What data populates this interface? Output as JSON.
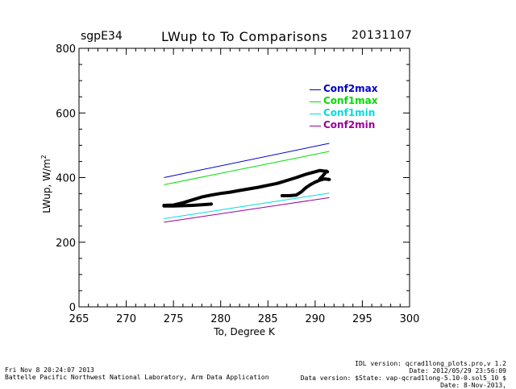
{
  "header": {
    "site": "sgpE34",
    "title": "LWup to To Comparisons",
    "date": "20131107"
  },
  "footer": {
    "left_line1": "Fri Nov  8 20:24:07 2013",
    "left_line2": "Battelle Pacific Northwest National Laboratory, Arm Data Application",
    "right_line1": "IDL version: qcrad1long_plots.pro,v 1.2",
    "right_line2": "Date: 2012/05/29 23:56:09",
    "right_line3": "Data version: $State: vap-qcrad1long-5.10-0.sol5_10 $",
    "right_line4": "Date: 8-Nov-2013,"
  },
  "chart_data": {
    "type": "scatter",
    "title": "LWup to To Comparisons",
    "xlabel": "To, Degree K",
    "ylabel": "LWup, W/m",
    "ylabel_superscript": "2",
    "xlim": [
      265,
      300
    ],
    "ylim": [
      0,
      800
    ],
    "xticks": [
      265,
      270,
      275,
      280,
      285,
      290,
      295,
      300
    ],
    "yticks": [
      0,
      200,
      400,
      600,
      800
    ],
    "grid": false,
    "legend_position": "top-right",
    "reference_lines": [
      {
        "name": "Conf2max",
        "color": "#0000cc",
        "x": [
          274,
          291.5
        ],
        "y": [
          400,
          506
        ]
      },
      {
        "name": "Conf1max",
        "color": "#00dd00",
        "x": [
          274,
          291.5
        ],
        "y": [
          378,
          481
        ]
      },
      {
        "name": "Conf1min",
        "color": "#00dddd",
        "x": [
          274,
          291.5
        ],
        "y": [
          273,
          352
        ]
      },
      {
        "name": "Conf2min",
        "color": "#990099",
        "x": [
          274,
          291.5
        ],
        "y": [
          262,
          338
        ]
      }
    ],
    "observations": {
      "color": "#000000",
      "segments": [
        {
          "x": [
            274.0,
            275.0,
            276.0,
            277.0,
            278.0,
            279.0,
            280.0,
            281.0,
            282.0,
            283.0,
            284.0,
            285.0,
            286.0,
            287.0,
            288.0,
            289.0,
            290.0,
            290.5,
            291.0,
            291.3
          ],
          "y": [
            314,
            315,
            322,
            331,
            340,
            346,
            351,
            355,
            360,
            365,
            370,
            376,
            382,
            391,
            400,
            410,
            418,
            422,
            420,
            418
          ]
        },
        {
          "x": [
            274.0,
            275.0,
            276.0,
            277.0,
            278.0,
            279.0
          ],
          "y": [
            312,
            312,
            313,
            314,
            316,
            318
          ]
        },
        {
          "x": [
            286.5,
            287.2,
            288.0,
            288.5,
            289.0,
            289.5,
            290.0,
            290.5,
            291.0,
            291.5
          ],
          "y": [
            344,
            344,
            346,
            355,
            368,
            378,
            386,
            392,
            396,
            394
          ]
        },
        {
          "x": [
            290.5,
            290.8,
            291.0,
            291.2
          ],
          "y": [
            396,
            405,
            412,
            420
          ]
        }
      ]
    }
  }
}
